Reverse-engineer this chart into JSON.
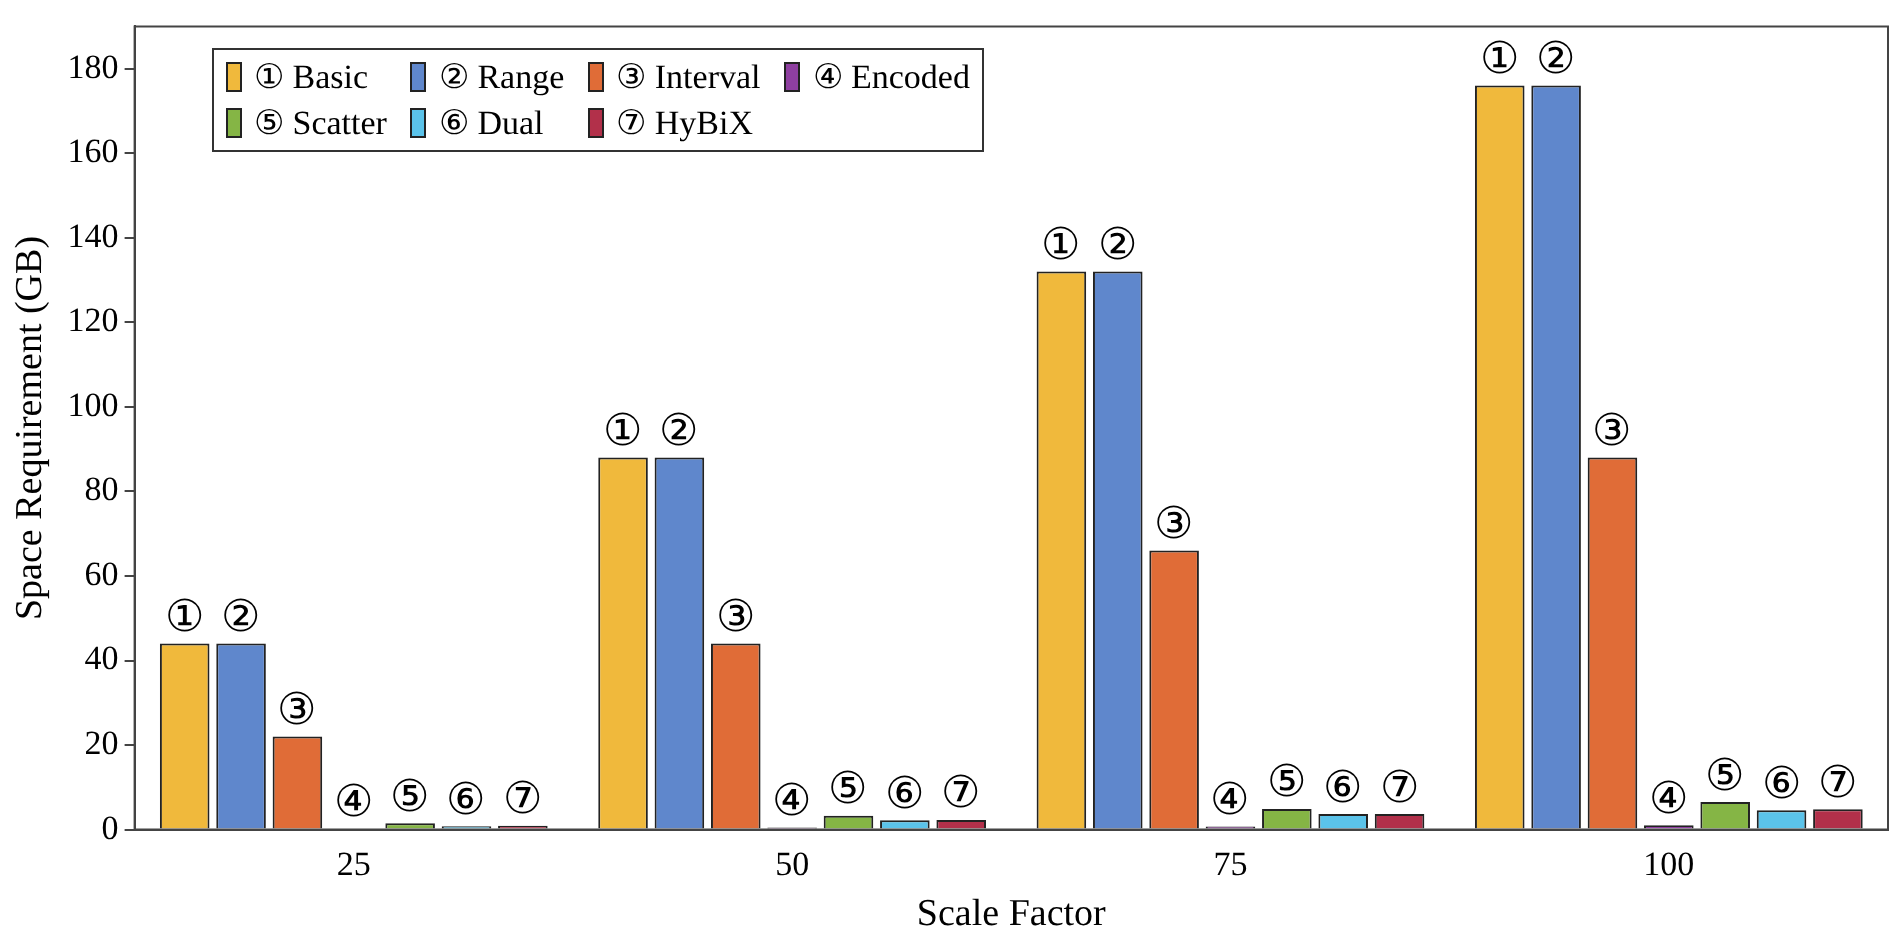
{
  "chart_data": {
    "type": "bar",
    "xlabel": "Scale Factor",
    "ylabel": "Space Requirement (GB)",
    "categories": [
      "25",
      "50",
      "75",
      "100"
    ],
    "series": [
      {
        "name": "① Basic",
        "color": "#f0b93c",
        "values": [
          44,
          88,
          132,
          176
        ],
        "value_labels": [
          "①",
          "①",
          "①",
          "①"
        ]
      },
      {
        "name": "② Range",
        "color": "#5f87cc",
        "values": [
          44,
          88,
          132,
          176
        ],
        "value_labels": [
          "②",
          "②",
          "②",
          "②"
        ]
      },
      {
        "name": "③ Interval",
        "color": "#e06c37",
        "values": [
          22,
          44,
          66,
          88
        ],
        "value_labels": [
          "③",
          "③",
          "③",
          "③"
        ]
      },
      {
        "name": "④ Encoded",
        "color": "#8e3fa0",
        "values": [
          0.25,
          0.5,
          0.75,
          1.0
        ],
        "value_labels": [
          "④",
          "④",
          "④",
          "④"
        ]
      },
      {
        "name": "⑤ Scatter",
        "color": "#85b545",
        "values": [
          1.5,
          3.3,
          4.9,
          6.5
        ],
        "value_labels": [
          "⑤",
          "⑤",
          "⑤",
          "⑤"
        ]
      },
      {
        "name": "⑥ Dual",
        "color": "#5bc3ea",
        "values": [
          0.8,
          2.2,
          3.7,
          4.6
        ],
        "value_labels": [
          "⑥",
          "⑥",
          "⑥",
          "⑥"
        ]
      },
      {
        "name": "⑦ HyBiX",
        "color": "#b2304a",
        "values": [
          0.9,
          2.3,
          3.7,
          4.8
        ],
        "value_labels": [
          "⑦",
          "⑦",
          "⑦",
          "⑦"
        ]
      }
    ],
    "ylim": [
      0,
      190
    ],
    "yticks": [
      0,
      20,
      40,
      60,
      80,
      100,
      120,
      140,
      160,
      180
    ],
    "grid": false,
    "legend": "top left"
  }
}
